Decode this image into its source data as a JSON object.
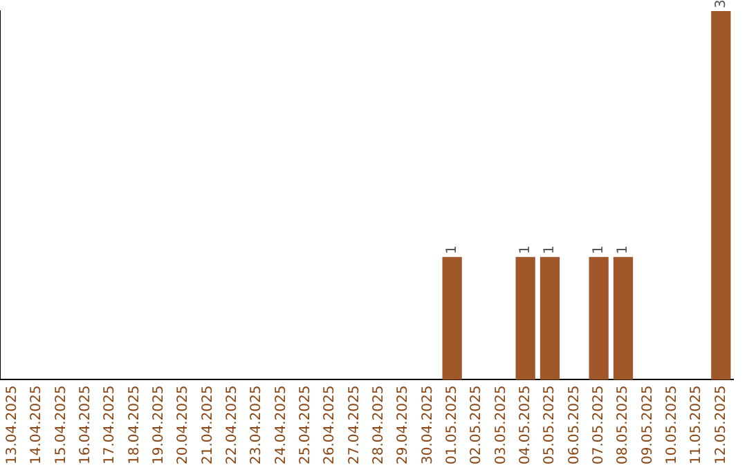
{
  "chart_data": {
    "type": "bar",
    "categories": [
      "13.04.2025",
      "14.04.2025",
      "15.04.2025",
      "16.04.2025",
      "17.04.2025",
      "18.04.2025",
      "19.04.2025",
      "20.04.2025",
      "21.04.2025",
      "22.04.2025",
      "23.04.2025",
      "24.04.2025",
      "25.04.2025",
      "26.04.2025",
      "27.04.2025",
      "28.04.2025",
      "29.04.2025",
      "30.04.2025",
      "01.05.2025",
      "02.05.2025",
      "03.05.2025",
      "04.05.2025",
      "05.05.2025",
      "06.05.2025",
      "07.05.2025",
      "08.05.2025",
      "09.05.2025",
      "10.05.2025",
      "11.05.2025",
      "12.05.2025"
    ],
    "values": [
      null,
      null,
      null,
      null,
      null,
      null,
      null,
      null,
      null,
      null,
      null,
      null,
      null,
      null,
      null,
      null,
      null,
      null,
      1,
      null,
      null,
      1,
      1,
      null,
      1,
      1,
      null,
      null,
      null,
      3
    ],
    "value_labels": [
      null,
      null,
      null,
      null,
      null,
      null,
      null,
      null,
      null,
      null,
      null,
      null,
      null,
      null,
      null,
      null,
      null,
      null,
      "1",
      null,
      null,
      "1",
      "1",
      null,
      "1",
      "1",
      null,
      null,
      null,
      "3"
    ],
    "color": "#a0572a",
    "ylim": [
      0,
      3
    ],
    "tick_labels": "x",
    "grid": false,
    "legend": false
  }
}
